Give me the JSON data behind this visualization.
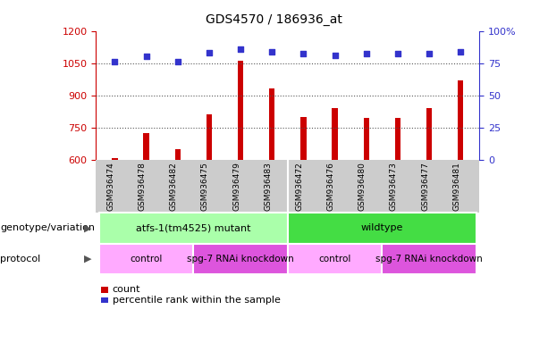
{
  "title": "GDS4570 / 186936_at",
  "samples": [
    "GSM936474",
    "GSM936478",
    "GSM936482",
    "GSM936475",
    "GSM936479",
    "GSM936483",
    "GSM936472",
    "GSM936476",
    "GSM936480",
    "GSM936473",
    "GSM936477",
    "GSM936481"
  ],
  "counts": [
    608,
    722,
    647,
    810,
    1060,
    930,
    800,
    840,
    795,
    795,
    840,
    970
  ],
  "percentile_ranks": [
    76,
    80,
    76,
    83,
    86,
    84,
    82,
    81,
    82,
    82,
    82,
    84
  ],
  "ylim_left": [
    600,
    1200
  ],
  "ylim_right": [
    0,
    100
  ],
  "yticks_left": [
    600,
    750,
    900,
    1050,
    1200
  ],
  "yticks_right": [
    0,
    25,
    50,
    75,
    100
  ],
  "bar_color": "#cc0000",
  "dot_color": "#3333cc",
  "genotype_groups": [
    {
      "label": "atfs-1(tm4525) mutant",
      "start": 0,
      "end": 5,
      "color": "#aaffaa"
    },
    {
      "label": "wildtype",
      "start": 6,
      "end": 11,
      "color": "#44dd44"
    }
  ],
  "protocol_groups": [
    {
      "label": "control",
      "start": 0,
      "end": 2,
      "color": "#ffaaff"
    },
    {
      "label": "spg-7 RNAi knockdown",
      "start": 3,
      "end": 5,
      "color": "#dd55dd"
    },
    {
      "label": "control",
      "start": 6,
      "end": 8,
      "color": "#ffaaff"
    },
    {
      "label": "spg-7 RNAi knockdown",
      "start": 9,
      "end": 11,
      "color": "#dd55dd"
    }
  ],
  "genotype_label": "genotype/variation",
  "protocol_label": "protocol",
  "legend_count_label": "count",
  "legend_pct_label": "percentile rank within the sample",
  "right_axis_color": "#3333cc",
  "left_axis_color": "#cc0000",
  "tick_bg_color": "#cccccc",
  "n_samples": 12
}
